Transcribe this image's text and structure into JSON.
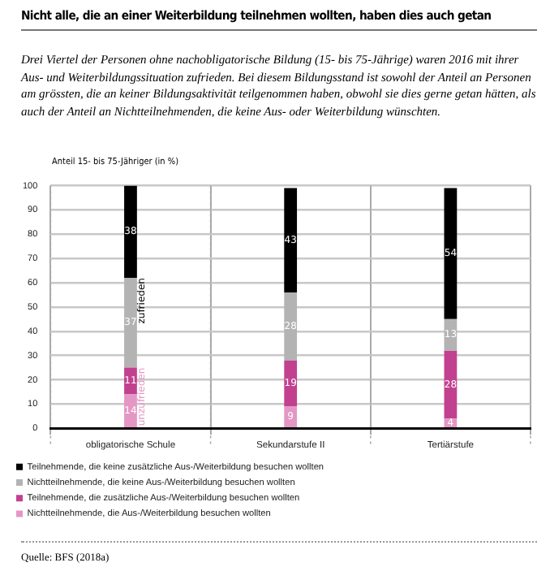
{
  "chart_data": {
    "type": "bar",
    "title": "Nicht alle, die an einer Weiterbildung teilnehmen wollten, haben dies auch getan",
    "subtitle": "Drei Viertel der Personen ohne nachobligatorische Bildung (15- bis 75-Jährige) waren 2016 mit ihrer Aus- und Weiterbildungssituation zufrieden. Bei diesem Bildungsstand ist sowohl der Anteil an Personen am grössten, die an keiner Bildungsaktivität teilgenommen haben, obwohl sie dies gerne getan hätten, als auch der Anteil an Nichtteilnehmenden, die keine Aus- oder Weiterbildung wünschten.",
    "ylabel": "Anteil 15- bis 75-Jähriger (in %)",
    "categories": [
      "obligatorische Schule",
      "Sekundarstufe II",
      "Tertiärstufe"
    ],
    "stacked": true,
    "series": [
      {
        "name": "Nichtteilnehmende, die Aus-/Weiterbildung besuchen wollten",
        "color": "#e497c4",
        "values": [
          14,
          9,
          4
        ]
      },
      {
        "name": "Teilnehmende, die zusätzliche Aus-/Weiterbildung besuchen wollten",
        "color": "#c2418f",
        "values": [
          11,
          19,
          28
        ]
      },
      {
        "name": "Nichtteilnehmende, die keine Aus-/Weiterbildung besuchen wollten",
        "color": "#b3b3b3",
        "values": [
          37,
          28,
          13
        ]
      },
      {
        "name": "Teilnehmende, die keine zusätzliche Aus-/Weiterbildung besuchen wollten",
        "color": "#000000",
        "values": [
          38,
          43,
          54
        ]
      }
    ],
    "ylim": [
      0,
      100
    ],
    "yticks": [
      0,
      10,
      20,
      30,
      40,
      50,
      60,
      70,
      80,
      90,
      100
    ],
    "grid": true,
    "legend": "bottom",
    "data_labels": true,
    "annotations": [
      {
        "text": "zufrieden",
        "x": "obligatorische Schule",
        "y": 62
      },
      {
        "text": "unzufrieden",
        "x": "obligatorische Schule",
        "y": 25
      },
      "Quelle: BFS (2018a)"
    ]
  }
}
